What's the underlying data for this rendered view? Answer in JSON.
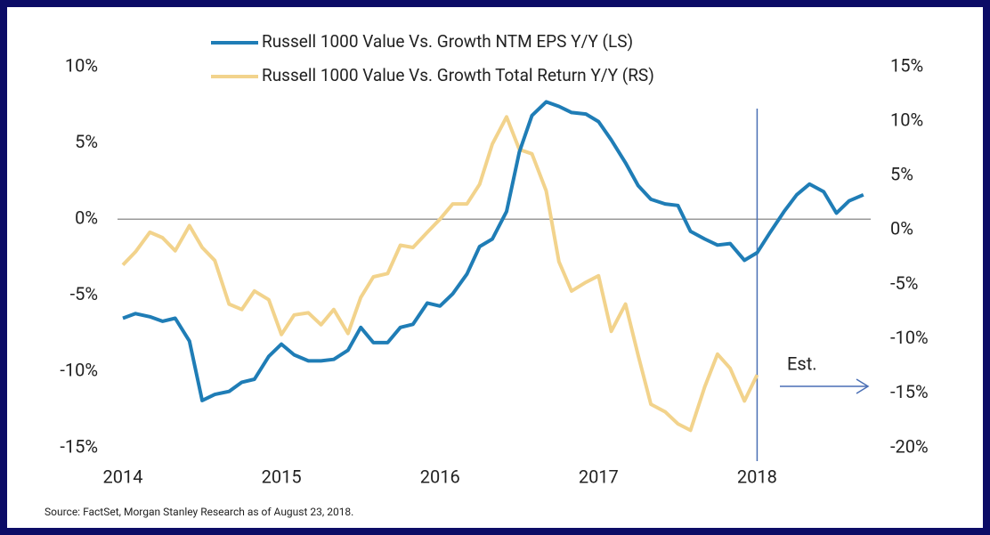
{
  "chart_data": {
    "type": "line",
    "x": [
      2014,
      2014.08,
      2014.17,
      2014.25,
      2014.33,
      2014.42,
      2014.5,
      2014.58,
      2014.67,
      2014.75,
      2014.83,
      2014.92,
      2015,
      2015.08,
      2015.17,
      2015.25,
      2015.33,
      2015.42,
      2015.5,
      2015.58,
      2015.67,
      2015.75,
      2015.83,
      2015.92,
      2016,
      2016.08,
      2016.17,
      2016.25,
      2016.33,
      2016.42,
      2016.5,
      2016.58,
      2016.67,
      2016.75,
      2016.83,
      2016.92,
      2017,
      2017.08,
      2017.17,
      2017.25,
      2017.33,
      2017.42,
      2017.5,
      2017.58,
      2017.67,
      2017.75,
      2017.83,
      2017.92,
      2018,
      2018.08,
      2018.17,
      2018.25,
      2018.33,
      2018.42,
      2018.5,
      2018.58,
      2018.67
    ],
    "series": [
      {
        "name": "Russell 1000 Value Vs. Growth NTM EPS Y/Y (LS)",
        "color": "#1f7db6",
        "axis": "y",
        "values": [
          -6.5,
          -6.2,
          -6.4,
          -6.7,
          -6.5,
          -8.0,
          -11.9,
          -11.5,
          -11.3,
          -10.7,
          -10.5,
          -9.0,
          -8.2,
          -8.9,
          -9.3,
          -9.3,
          -9.2,
          -8.6,
          -7.1,
          -8.1,
          -8.1,
          -7.1,
          -6.9,
          -5.5,
          -5.7,
          -4.9,
          -3.6,
          -1.8,
          -1.3,
          0.5,
          4.4,
          6.8,
          7.7,
          7.4,
          7.0,
          6.9,
          6.4,
          5.2,
          3.7,
          2.2,
          1.3,
          1.0,
          0.9,
          -0.8,
          -1.3,
          -1.7,
          -1.6,
          -2.7,
          -2.2,
          -0.9,
          0.5,
          1.6,
          2.3,
          1.8,
          0.4,
          1.2,
          1.6
        ]
      },
      {
        "name": "Russell 1000 Value Vs. Growth Total Return Y/Y (RS)",
        "color": "#f2d38c",
        "axis": "y2",
        "values": [
          -3.2,
          -2.0,
          -0.2,
          -0.7,
          -1.9,
          0.4,
          -1.6,
          -2.8,
          -6.8,
          -7.3,
          -5.6,
          -6.4,
          -9.6,
          -7.8,
          -7.6,
          -8.7,
          -7.3,
          -9.5,
          -6.2,
          -4.3,
          -4.0,
          -1.4,
          -1.6,
          -0.2,
          1.0,
          2.4,
          2.4,
          4.2,
          7.9,
          10.4,
          7.4,
          7.0,
          3.6,
          -2.9,
          -5.6,
          -4.8,
          -4.2,
          -9.3,
          -6.8,
          -11.5,
          -16.0,
          -16.7,
          -17.8,
          -18.4,
          -14.4,
          -11.4,
          -12.7,
          -15.7,
          -13.3,
          null,
          null,
          null,
          null,
          null,
          null,
          null,
          null
        ]
      }
    ],
    "xlim": [
      2014,
      2018.75
    ],
    "xticks": [
      2014,
      2015,
      2016,
      2017,
      2018
    ],
    "ylim": [
      -15,
      10
    ],
    "yticks": [
      {
        "value": -15,
        "label": "-15%"
      },
      {
        "value": -10,
        "label": "-10%"
      },
      {
        "value": -5,
        "label": "-5%"
      },
      {
        "value": 0,
        "label": "0%"
      },
      {
        "value": 5,
        "label": "5%"
      },
      {
        "value": 10,
        "label": "10%"
      }
    ],
    "y2lim": [
      -20,
      15
    ],
    "y2ticks": [
      {
        "value": -20,
        "label": "-20%"
      },
      {
        "value": -15,
        "label": "-15%"
      },
      {
        "value": -10,
        "label": "-10%"
      },
      {
        "value": -5,
        "label": "-5%"
      },
      {
        "value": 0,
        "label": "0%"
      },
      {
        "value": 5,
        "label": "5%"
      },
      {
        "value": 10,
        "label": "10%"
      },
      {
        "value": 15,
        "label": "15%"
      }
    ],
    "annotation": {
      "text": "Est.",
      "x": 2018
    },
    "source": "Source: FactSet, Morgan Stanley Research as of August 23, 2018."
  }
}
